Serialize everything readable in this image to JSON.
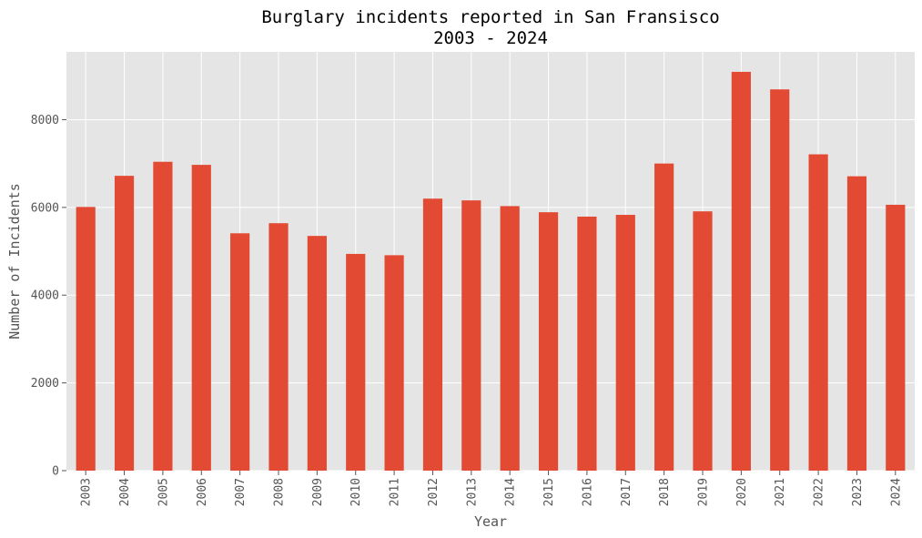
{
  "chart_data": {
    "type": "bar",
    "title_line1": "Burglary incidents reported in San Fransisco",
    "title_line2": "2003 - 2024",
    "xlabel": "Year",
    "ylabel": "Number of Incidents",
    "categories": [
      "2003",
      "2004",
      "2005",
      "2006",
      "2007",
      "2008",
      "2009",
      "2010",
      "2011",
      "2012",
      "2013",
      "2014",
      "2015",
      "2016",
      "2017",
      "2018",
      "2019",
      "2020",
      "2021",
      "2022",
      "2023",
      "2024"
    ],
    "values": [
      6010,
      6720,
      7040,
      6970,
      5410,
      5640,
      5350,
      4940,
      4910,
      6200,
      6160,
      6030,
      5890,
      5790,
      5830,
      7000,
      5910,
      9090,
      8690,
      7210,
      6710,
      6060
    ],
    "yticks": [
      0,
      2000,
      4000,
      6000,
      8000
    ],
    "ylim": [
      0,
      9545
    ],
    "grid": true,
    "colors": {
      "bar": "#E24A33",
      "plot_background": "#E5E5E5",
      "grid": "#FFFFFF"
    }
  }
}
